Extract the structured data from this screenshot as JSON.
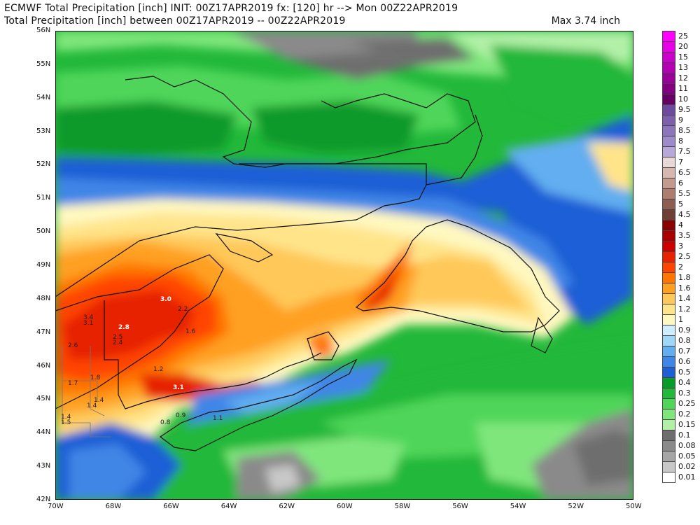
{
  "header": {
    "line1": "ECMWF Total Precipitation [inch] INIT: 00Z17APR2019 fx: [120] hr --> Mon 00Z22APR2019",
    "line2": "Total Precipitation [inch] between 00Z17APR2019 -- 00Z22APR2019",
    "max_label": "Max 3.74 inch"
  },
  "axes": {
    "lat_labels": [
      "56N",
      "55N",
      "54N",
      "53N",
      "52N",
      "51N",
      "50N",
      "49N",
      "48N",
      "47N",
      "46N",
      "45N",
      "44N",
      "43N",
      "42N"
    ],
    "lon_labels": [
      "70W",
      "68W",
      "66W",
      "64W",
      "62W",
      "60W",
      "58W",
      "56W",
      "54W",
      "52W",
      "50W"
    ]
  },
  "legend": {
    "items": [
      {
        "label": "25",
        "color": "#ff00ff"
      },
      {
        "label": "20",
        "color": "#e600e6"
      },
      {
        "label": "15",
        "color": "#cc00cc"
      },
      {
        "label": "13",
        "color": "#b300b3"
      },
      {
        "label": "12",
        "color": "#990099"
      },
      {
        "label": "11",
        "color": "#800080"
      },
      {
        "label": "10",
        "color": "#660066"
      },
      {
        "label": "9.5",
        "color": "#6e4a9e"
      },
      {
        "label": "9",
        "color": "#7d5fad"
      },
      {
        "label": "8.5",
        "color": "#8d75bc"
      },
      {
        "label": "8",
        "color": "#9d8bca"
      },
      {
        "label": "7.5",
        "color": "#b6a8d8"
      },
      {
        "label": "7",
        "color": "#e8d8d8"
      },
      {
        "label": "6.5",
        "color": "#d6b8b0"
      },
      {
        "label": "6",
        "color": "#c49a8e"
      },
      {
        "label": "5.5",
        "color": "#ad7d70"
      },
      {
        "label": "5",
        "color": "#8f5e52"
      },
      {
        "label": "4.5",
        "color": "#6f3f35"
      },
      {
        "label": "4",
        "color": "#8a0000"
      },
      {
        "label": "3.5",
        "color": "#a80000"
      },
      {
        "label": "3",
        "color": "#cc0000"
      },
      {
        "label": "2.5",
        "color": "#e62200"
      },
      {
        "label": "2",
        "color": "#ff4400"
      },
      {
        "label": "1.8",
        "color": "#ff7700"
      },
      {
        "label": "1.6",
        "color": "#ffa020"
      },
      {
        "label": "1.4",
        "color": "#ffc859"
      },
      {
        "label": "1.2",
        "color": "#ffe48a"
      },
      {
        "label": "1",
        "color": "#fff8c0"
      },
      {
        "label": "0.9",
        "color": "#cdeeff"
      },
      {
        "label": "0.8",
        "color": "#9fd7f6"
      },
      {
        "label": "0.7",
        "color": "#62aef0"
      },
      {
        "label": "0.6",
        "color": "#3f86e6"
      },
      {
        "label": "0.5",
        "color": "#1f5fd6"
      },
      {
        "label": "0.4",
        "color": "#0a9a2a"
      },
      {
        "label": "0.3",
        "color": "#22b83a"
      },
      {
        "label": "0.25",
        "color": "#4fd65a"
      },
      {
        "label": "0.2",
        "color": "#7fe67c"
      },
      {
        "label": "0.15",
        "color": "#b2f0a8"
      },
      {
        "label": "0.1",
        "color": "#6e6e6e"
      },
      {
        "label": "0.08",
        "color": "#8a8a8a"
      },
      {
        "label": "0.05",
        "color": "#a6a6a6"
      },
      {
        "label": "0.02",
        "color": "#c8c8c8"
      },
      {
        "label": "0.01",
        "color": "#ffffff"
      }
    ]
  },
  "point_labels": [
    {
      "text": "3.0"
    },
    {
      "text": "2.2"
    },
    {
      "text": "3.4"
    },
    {
      "text": "3.1"
    },
    {
      "text": "2.8"
    },
    {
      "text": "2.5"
    },
    {
      "text": "2.4"
    },
    {
      "text": "2.6"
    },
    {
      "text": "1.7"
    },
    {
      "text": "1.8"
    },
    {
      "text": "1.4"
    },
    {
      "text": "1.4"
    },
    {
      "text": "1.5"
    },
    {
      "text": "1.4"
    },
    {
      "text": "1.2"
    },
    {
      "text": "3.1"
    },
    {
      "text": "0.9"
    },
    {
      "text": "1.1"
    },
    {
      "text": "0.8"
    },
    {
      "text": "1.6"
    }
  ]
}
